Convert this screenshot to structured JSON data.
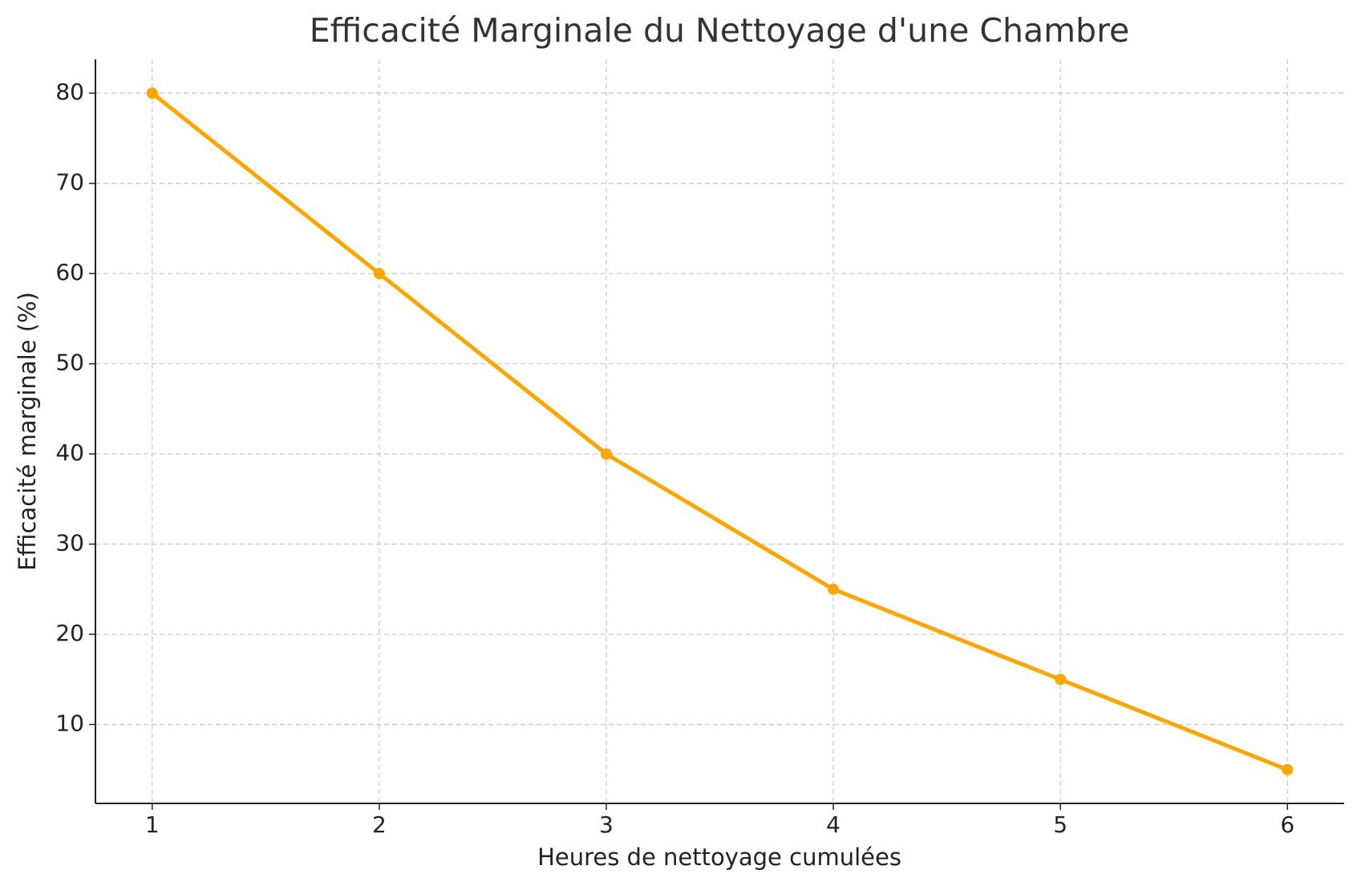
{
  "chart_data": {
    "type": "line",
    "title": "Efficacité Marginale du Nettoyage d'une Chambre",
    "x_label": "Heures de nettoyage cumulées",
    "y_label": "Efficacité marginale (%)",
    "x": [
      1,
      2,
      3,
      4,
      5,
      6
    ],
    "series": [
      {
        "name": "Efficacité marginale",
        "color": "#ffa500",
        "values": [
          80,
          60,
          40,
          25,
          15,
          5
        ]
      }
    ],
    "xlim": [
      0.75,
      6.25
    ],
    "xticks": [
      1,
      2,
      3,
      4,
      5,
      6
    ],
    "ylim": [
      1.25,
      83.75
    ],
    "yticks": [
      10,
      20,
      30,
      40,
      50,
      60,
      70,
      80
    ],
    "grid": true
  }
}
